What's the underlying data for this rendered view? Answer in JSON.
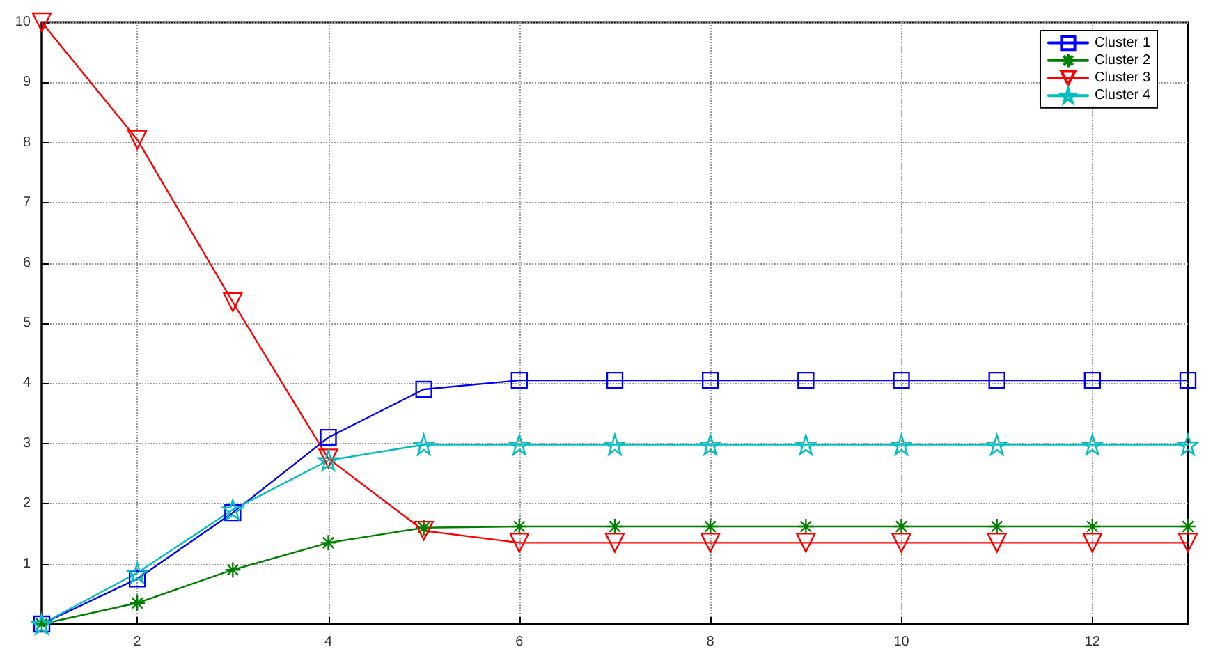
{
  "chart_data": {
    "type": "line",
    "x": [
      1,
      2,
      3,
      4,
      5,
      6,
      7,
      8,
      9,
      10,
      11,
      12,
      13
    ],
    "xlim": [
      1,
      13
    ],
    "xticks": [
      2,
      4,
      6,
      8,
      10,
      12
    ],
    "ylim": [
      0,
      10
    ],
    "yticks": [
      1,
      2,
      3,
      4,
      5,
      6,
      7,
      8,
      9,
      10
    ],
    "grid": true,
    "legend": "top right",
    "line_style": "solid",
    "series": [
      {
        "name": "Cluster 1",
        "color": "#0000ff",
        "marker": "square",
        "values": [
          0,
          0.75,
          1.85,
          3.1,
          3.9,
          4.05,
          4.05,
          4.05,
          4.05,
          4.05,
          4.05,
          4.05,
          4.05
        ]
      },
      {
        "name": "Cluster 2",
        "color": "#008000",
        "marker": "cross",
        "values": [
          0,
          0.35,
          0.9,
          1.35,
          1.6,
          1.62,
          1.62,
          1.62,
          1.62,
          1.62,
          1.62,
          1.62,
          1.62
        ]
      },
      {
        "name": "Cluster 3",
        "color": "#ff0000",
        "marker": "triangle",
        "values": [
          10,
          8.05,
          5.35,
          2.75,
          1.55,
          1.35,
          1.35,
          1.35,
          1.35,
          1.35,
          1.35,
          1.35,
          1.35
        ]
      },
      {
        "name": "Cluster 4",
        "color": "#00bfbf",
        "marker": "star",
        "values": [
          0,
          0.85,
          1.9,
          2.72,
          2.98,
          2.98,
          2.98,
          2.98,
          2.98,
          2.98,
          2.98,
          2.98,
          2.98
        ]
      }
    ]
  }
}
